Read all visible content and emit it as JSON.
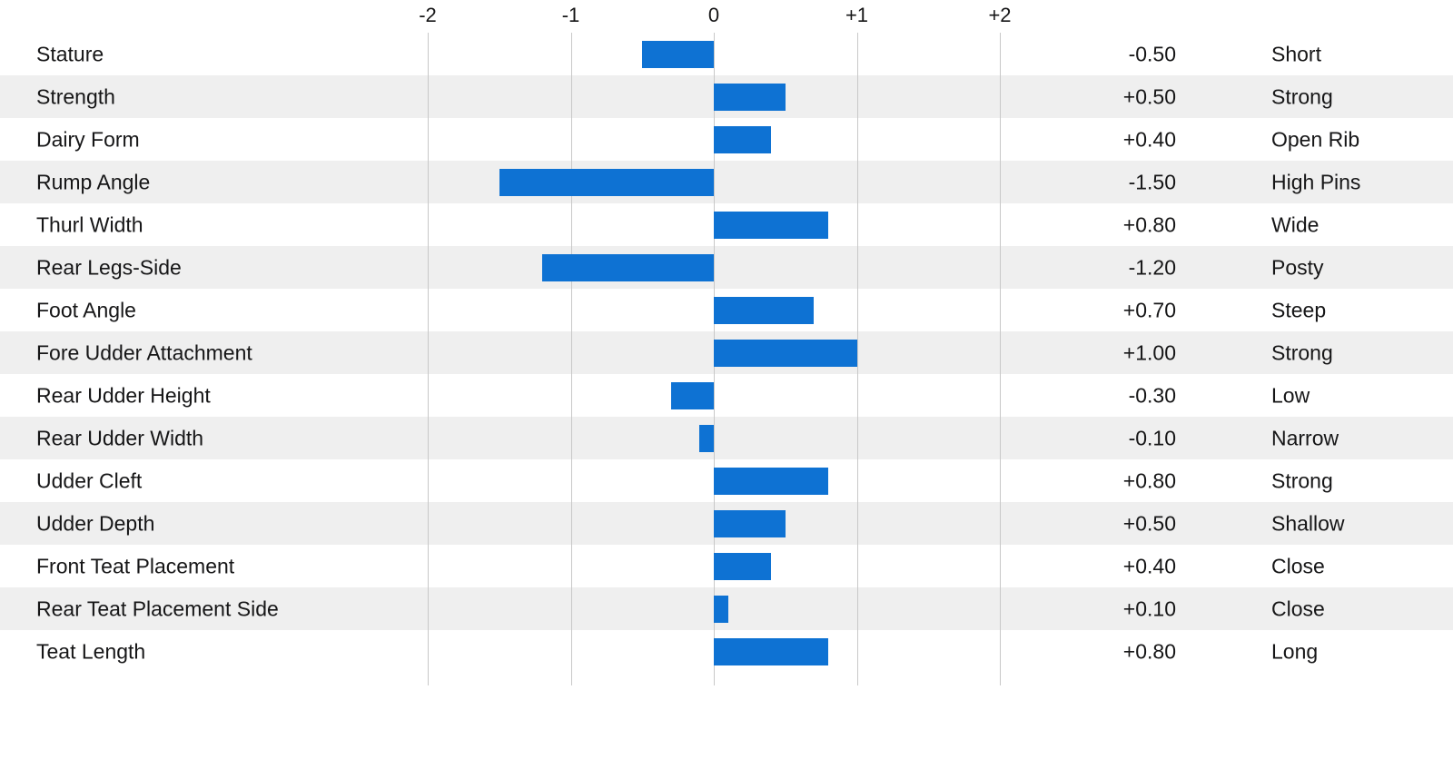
{
  "chart_data": {
    "type": "bar",
    "orientation": "horizontal",
    "title": "",
    "axis": {
      "min": -2,
      "max": 2,
      "ticks": [
        -2,
        -1,
        0,
        1,
        2
      ],
      "tick_labels": [
        "-2",
        "-1",
        "0",
        "+1",
        "+2"
      ]
    },
    "rows": [
      {
        "trait": "Stature",
        "value": -0.5,
        "value_label": "-0.50",
        "descriptor": "Short"
      },
      {
        "trait": "Strength",
        "value": 0.5,
        "value_label": "+0.50",
        "descriptor": "Strong"
      },
      {
        "trait": "Dairy Form",
        "value": 0.4,
        "value_label": "+0.40",
        "descriptor": "Open Rib"
      },
      {
        "trait": "Rump Angle",
        "value": -1.5,
        "value_label": "-1.50",
        "descriptor": "High Pins"
      },
      {
        "trait": "Thurl Width",
        "value": 0.8,
        "value_label": "+0.80",
        "descriptor": "Wide"
      },
      {
        "trait": "Rear Legs-Side",
        "value": -1.2,
        "value_label": "-1.20",
        "descriptor": "Posty"
      },
      {
        "trait": "Foot Angle",
        "value": 0.7,
        "value_label": "+0.70",
        "descriptor": "Steep"
      },
      {
        "trait": "Fore Udder Attachment",
        "value": 1.0,
        "value_label": "+1.00",
        "descriptor": "Strong"
      },
      {
        "trait": "Rear Udder Height",
        "value": -0.3,
        "value_label": "-0.30",
        "descriptor": "Low"
      },
      {
        "trait": "Rear Udder Width",
        "value": -0.1,
        "value_label": "-0.10",
        "descriptor": "Narrow"
      },
      {
        "trait": "Udder Cleft",
        "value": 0.8,
        "value_label": "+0.80",
        "descriptor": "Strong"
      },
      {
        "trait": "Udder Depth",
        "value": 0.5,
        "value_label": "+0.50",
        "descriptor": "Shallow"
      },
      {
        "trait": "Front Teat Placement",
        "value": 0.4,
        "value_label": "+0.40",
        "descriptor": "Close"
      },
      {
        "trait": "Rear Teat Placement Side",
        "value": 0.1,
        "value_label": "+0.10",
        "descriptor": "Close"
      },
      {
        "trait": "Teat Length",
        "value": 0.8,
        "value_label": "+0.80",
        "descriptor": "Long"
      }
    ],
    "colors": {
      "bar": "#0e72d3",
      "row": "#ffffff",
      "row_alt": "#efefef",
      "gridline": "#c8c8c8",
      "text": "#161617"
    },
    "legend": "none",
    "grid": "vertical"
  }
}
